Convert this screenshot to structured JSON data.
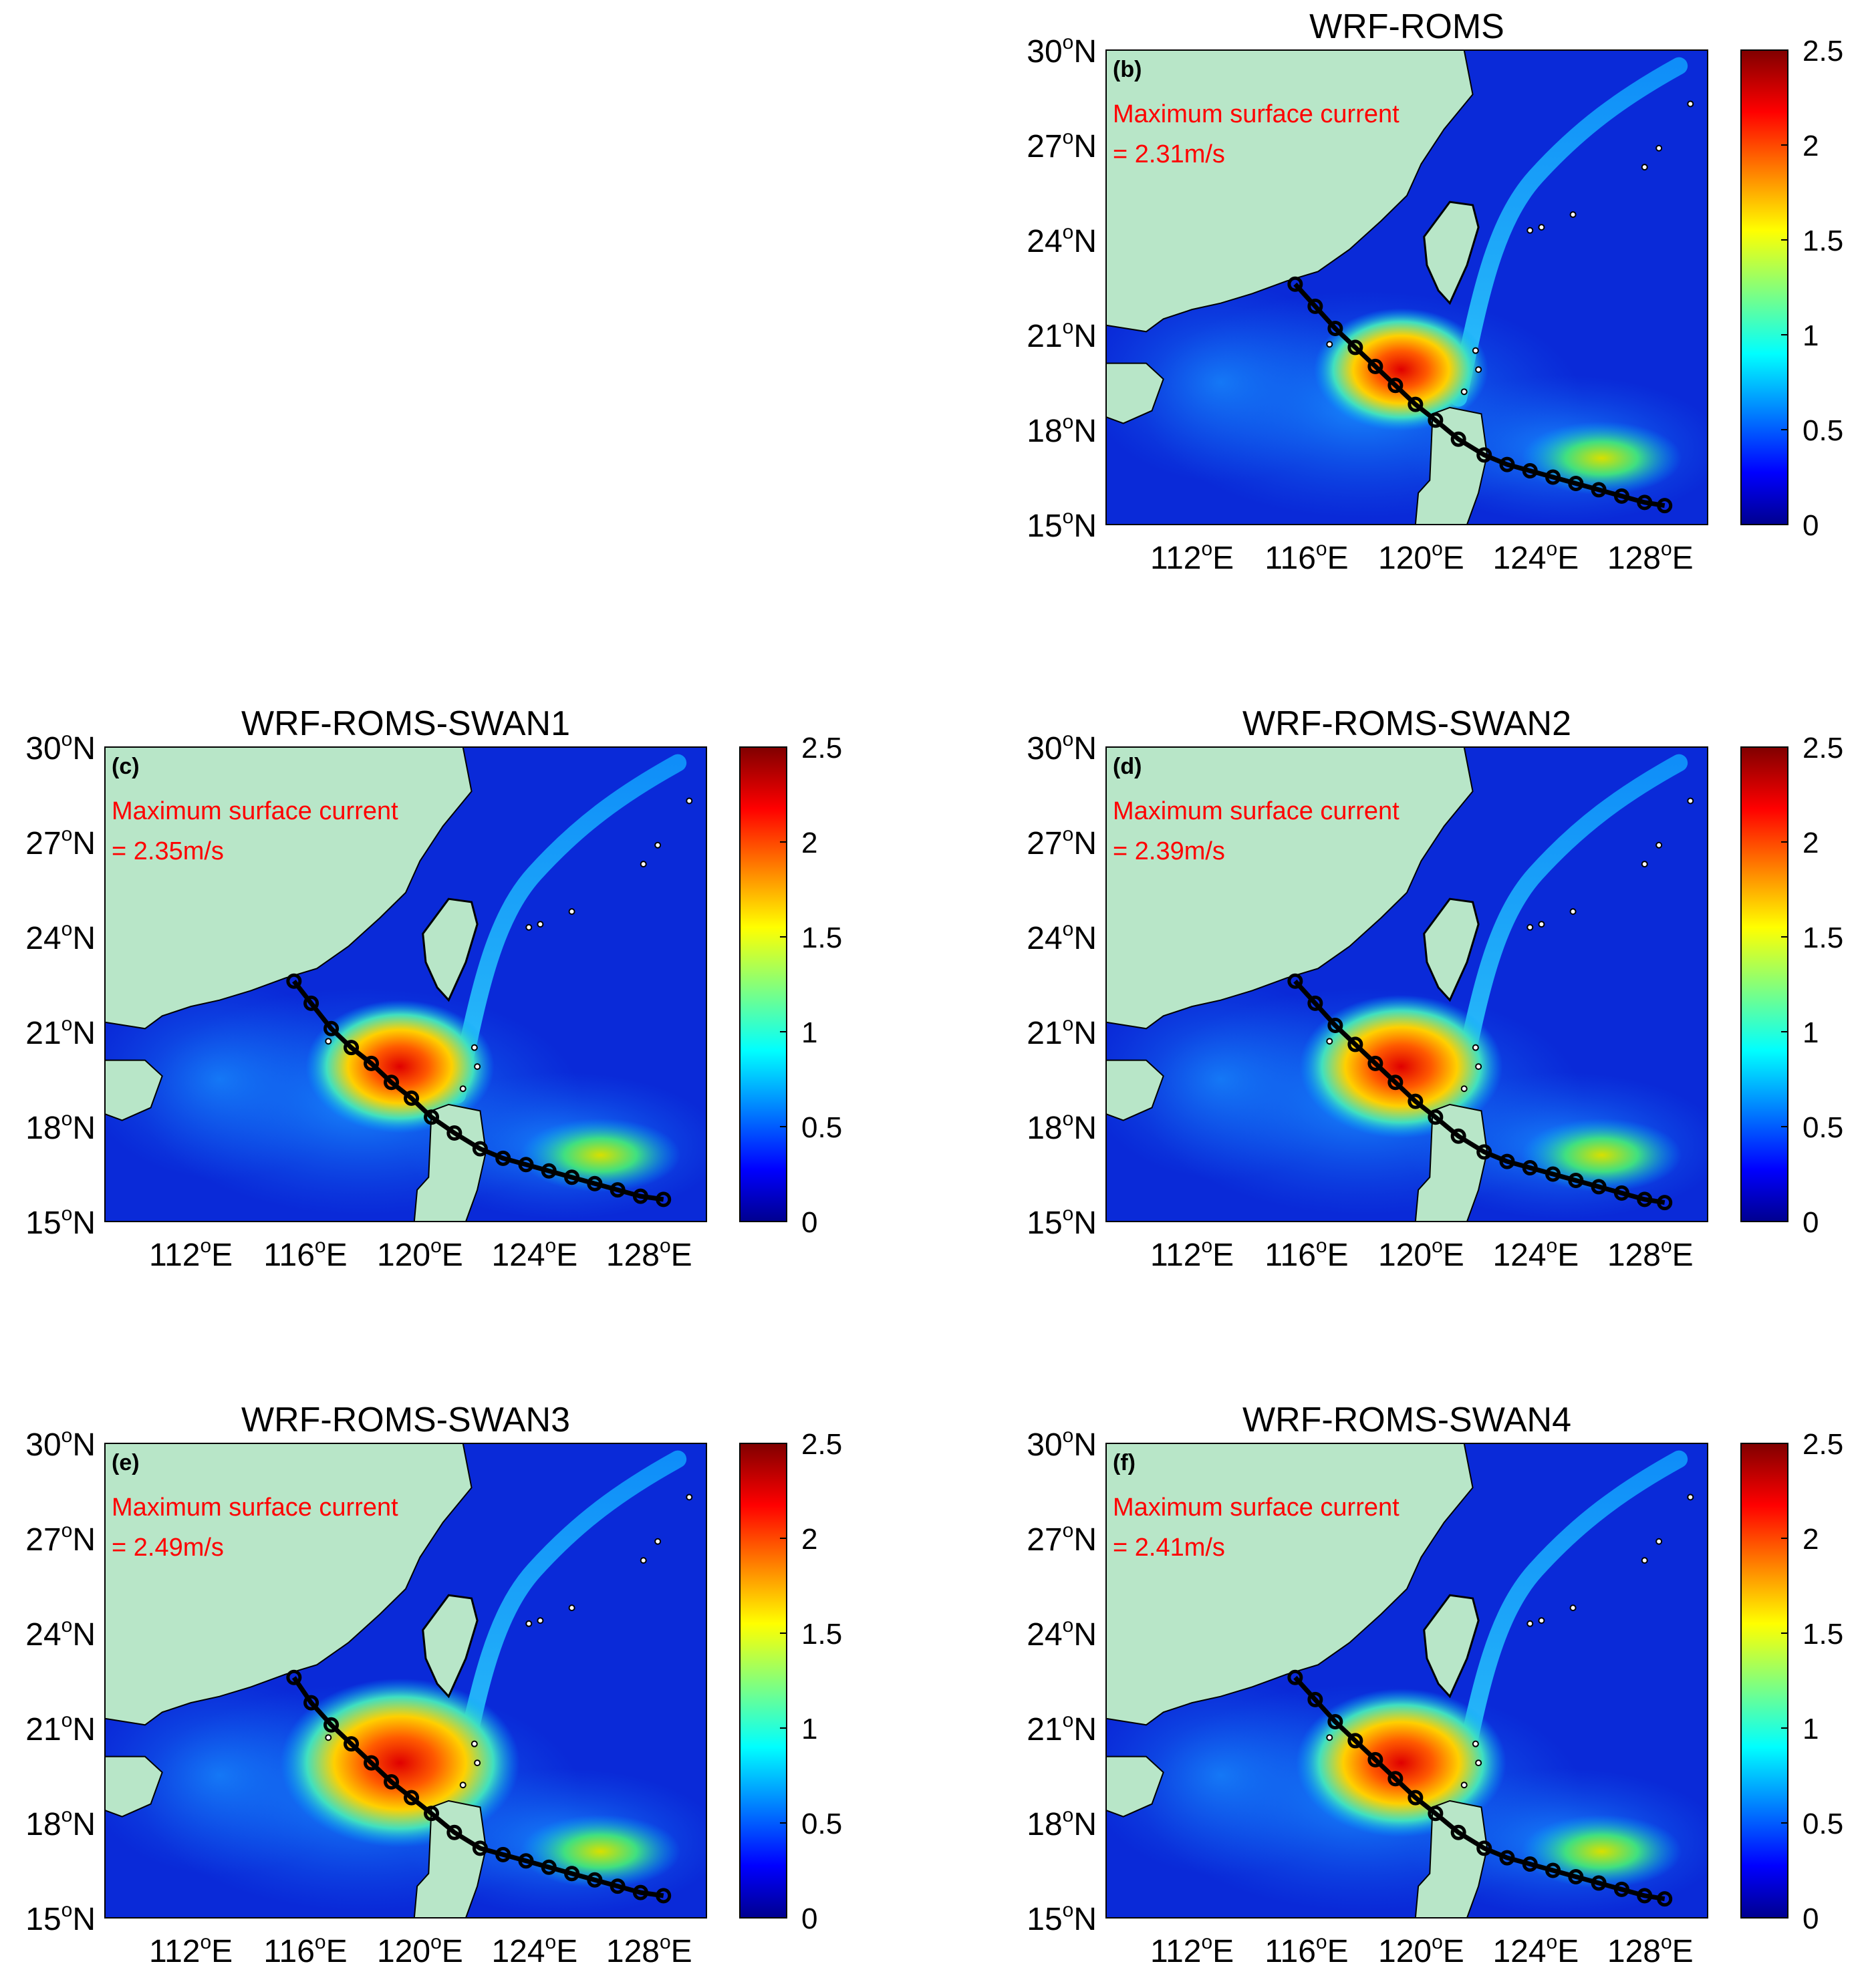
{
  "colorbar": {
    "ticks": [
      0,
      0.5,
      1,
      1.5,
      2,
      2.5
    ],
    "tick_labels": [
      "0",
      "0.5",
      "1",
      "1.5",
      "2",
      "2.5"
    ],
    "colormap": "jet",
    "range": [
      0,
      2.5
    ]
  },
  "axes": {
    "lon_range": [
      109,
      130
    ],
    "lat_range": [
      15,
      30
    ],
    "x_ticks": [
      112,
      116,
      120,
      124,
      128
    ],
    "x_tick_labels": [
      "112",
      "116",
      "120",
      "124",
      "128"
    ],
    "y_ticks": [
      15,
      18,
      21,
      24,
      27,
      30
    ],
    "y_tick_labels": [
      "15",
      "18",
      "21",
      "24",
      "27",
      "30"
    ],
    "x_suffix": "E",
    "y_suffix": "N",
    "degree_symbol": "o"
  },
  "annotation_label": "Maximum surface current",
  "colors": {
    "land": "#b8e6c8",
    "annotation": "#ff0000",
    "track": "#000000"
  },
  "chart_data": [
    {
      "type": "heatmap",
      "panel": "(b)",
      "title": "WRF-ROMS",
      "annotation_value": "= 2.31m/s",
      "max_current": 2.31,
      "track": {
        "lon": [
          115.6,
          116.3,
          117.0,
          117.7,
          118.4,
          119.1,
          119.8,
          120.5,
          121.3,
          122.2,
          123.0,
          123.8,
          124.6,
          125.4,
          126.2,
          127.0,
          127.8,
          128.5
        ],
        "lat": [
          22.6,
          21.9,
          21.2,
          20.6,
          20.0,
          19.4,
          18.8,
          18.3,
          17.7,
          17.2,
          16.9,
          16.7,
          16.5,
          16.3,
          16.1,
          15.9,
          15.7,
          15.6
        ]
      }
    },
    {
      "type": "heatmap",
      "panel": "(c)",
      "title": "WRF-ROMS-SWAN1",
      "annotation_value": "= 2.35m/s",
      "max_current": 2.35,
      "track": {
        "lon": [
          115.6,
          116.2,
          116.9,
          117.6,
          118.3,
          119.0,
          119.7,
          120.4,
          121.2,
          122.1,
          122.9,
          123.7,
          124.5,
          125.3,
          126.1,
          126.9,
          127.7,
          128.5
        ],
        "lat": [
          22.6,
          21.9,
          21.1,
          20.5,
          20.0,
          19.4,
          18.9,
          18.3,
          17.8,
          17.3,
          17.0,
          16.8,
          16.6,
          16.4,
          16.2,
          16.0,
          15.8,
          15.7
        ]
      }
    },
    {
      "type": "heatmap",
      "panel": "(d)",
      "title": "WRF-ROMS-SWAN2",
      "annotation_value": "= 2.39m/s",
      "max_current": 2.39,
      "track": {
        "lon": [
          115.6,
          116.3,
          117.0,
          117.7,
          118.4,
          119.1,
          119.8,
          120.5,
          121.3,
          122.2,
          123.0,
          123.8,
          124.6,
          125.4,
          126.2,
          127.0,
          127.8,
          128.5
        ],
        "lat": [
          22.6,
          21.9,
          21.2,
          20.6,
          20.0,
          19.4,
          18.8,
          18.3,
          17.7,
          17.2,
          16.9,
          16.7,
          16.5,
          16.3,
          16.1,
          15.9,
          15.7,
          15.6
        ]
      }
    },
    {
      "type": "heatmap",
      "panel": "(e)",
      "title": "WRF-ROMS-SWAN3",
      "annotation_value": "= 2.49m/s",
      "max_current": 2.49,
      "track": {
        "lon": [
          115.6,
          116.2,
          116.9,
          117.6,
          118.3,
          119.0,
          119.7,
          120.4,
          121.2,
          122.1,
          122.9,
          123.7,
          124.5,
          125.3,
          126.1,
          126.9,
          127.7,
          128.5
        ],
        "lat": [
          22.6,
          21.8,
          21.1,
          20.5,
          19.9,
          19.3,
          18.8,
          18.3,
          17.7,
          17.2,
          17.0,
          16.8,
          16.6,
          16.4,
          16.2,
          16.0,
          15.8,
          15.7
        ]
      }
    },
    {
      "type": "heatmap",
      "panel": "(f)",
      "title": "WRF-ROMS-SWAN4",
      "annotation_value": "= 2.41m/s",
      "max_current": 2.41,
      "track": {
        "lon": [
          115.6,
          116.3,
          117.0,
          117.7,
          118.4,
          119.1,
          119.8,
          120.5,
          121.3,
          122.2,
          123.0,
          123.8,
          124.6,
          125.4,
          126.2,
          127.0,
          127.8,
          128.5
        ],
        "lat": [
          22.6,
          21.9,
          21.2,
          20.6,
          20.0,
          19.4,
          18.8,
          18.3,
          17.7,
          17.2,
          16.9,
          16.7,
          16.5,
          16.3,
          16.1,
          15.9,
          15.7,
          15.6
        ]
      }
    }
  ]
}
